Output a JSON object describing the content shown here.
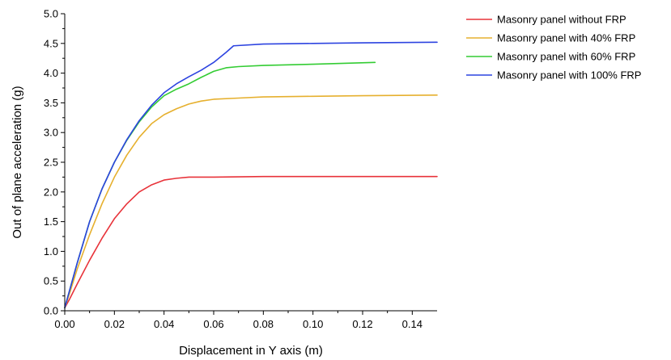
{
  "chart_data": {
    "type": "line",
    "title": "",
    "xlabel": "Displacement in Y axis (m)",
    "ylabel": "Out of plane acceleration (g)",
    "xlim": [
      0,
      0.15
    ],
    "ylim": [
      0,
      5.0
    ],
    "x_ticks": [
      "0.00",
      "0.02",
      "0.04",
      "0.06",
      "0.08",
      "0.10",
      "0.12",
      "0.14"
    ],
    "y_ticks": [
      "0.0",
      "0.5",
      "1.0",
      "1.5",
      "2.0",
      "2.5",
      "3.0",
      "3.5",
      "4.0",
      "4.5",
      "5.0"
    ],
    "grid": false,
    "legend_position": "right",
    "series": [
      {
        "name": "Masonry panel without FRP",
        "color": "#e8333a",
        "points": [
          [
            0.0,
            0.05
          ],
          [
            0.002,
            0.2
          ],
          [
            0.005,
            0.45
          ],
          [
            0.01,
            0.85
          ],
          [
            0.015,
            1.22
          ],
          [
            0.02,
            1.55
          ],
          [
            0.025,
            1.8
          ],
          [
            0.03,
            2.0
          ],
          [
            0.035,
            2.12
          ],
          [
            0.04,
            2.2
          ],
          [
            0.045,
            2.23
          ],
          [
            0.05,
            2.25
          ],
          [
            0.06,
            2.25
          ],
          [
            0.08,
            2.26
          ],
          [
            0.1,
            2.26
          ],
          [
            0.12,
            2.26
          ],
          [
            0.15,
            2.26
          ]
        ]
      },
      {
        "name": "Masonry panel with 40% FRP",
        "color": "#e6b02e",
        "points": [
          [
            0.0,
            0.05
          ],
          [
            0.002,
            0.3
          ],
          [
            0.005,
            0.7
          ],
          [
            0.01,
            1.28
          ],
          [
            0.015,
            1.8
          ],
          [
            0.02,
            2.25
          ],
          [
            0.025,
            2.62
          ],
          [
            0.03,
            2.92
          ],
          [
            0.035,
            3.15
          ],
          [
            0.04,
            3.3
          ],
          [
            0.045,
            3.4
          ],
          [
            0.05,
            3.48
          ],
          [
            0.055,
            3.53
          ],
          [
            0.06,
            3.56
          ],
          [
            0.07,
            3.58
          ],
          [
            0.08,
            3.6
          ],
          [
            0.1,
            3.61
          ],
          [
            0.12,
            3.62
          ],
          [
            0.15,
            3.63
          ]
        ]
      },
      {
        "name": "Masonry panel with 60% FRP",
        "color": "#33cc33",
        "points": [
          [
            0.0,
            0.05
          ],
          [
            0.002,
            0.35
          ],
          [
            0.005,
            0.8
          ],
          [
            0.01,
            1.5
          ],
          [
            0.015,
            2.05
          ],
          [
            0.02,
            2.5
          ],
          [
            0.025,
            2.87
          ],
          [
            0.03,
            3.18
          ],
          [
            0.035,
            3.43
          ],
          [
            0.04,
            3.62
          ],
          [
            0.045,
            3.73
          ],
          [
            0.05,
            3.82
          ],
          [
            0.055,
            3.93
          ],
          [
            0.06,
            4.03
          ],
          [
            0.065,
            4.09
          ],
          [
            0.07,
            4.11
          ],
          [
            0.08,
            4.13
          ],
          [
            0.1,
            4.15
          ],
          [
            0.125,
            4.18
          ]
        ]
      },
      {
        "name": "Masonry panel with 100% FRP",
        "color": "#2c43e0",
        "points": [
          [
            0.0,
            0.05
          ],
          [
            0.002,
            0.35
          ],
          [
            0.005,
            0.8
          ],
          [
            0.01,
            1.5
          ],
          [
            0.015,
            2.05
          ],
          [
            0.02,
            2.5
          ],
          [
            0.025,
            2.88
          ],
          [
            0.03,
            3.2
          ],
          [
            0.035,
            3.46
          ],
          [
            0.04,
            3.67
          ],
          [
            0.045,
            3.82
          ],
          [
            0.05,
            3.94
          ],
          [
            0.055,
            4.05
          ],
          [
            0.06,
            4.18
          ],
          [
            0.065,
            4.35
          ],
          [
            0.068,
            4.46
          ],
          [
            0.08,
            4.49
          ],
          [
            0.1,
            4.5
          ],
          [
            0.12,
            4.51
          ],
          [
            0.15,
            4.52
          ]
        ]
      }
    ]
  }
}
